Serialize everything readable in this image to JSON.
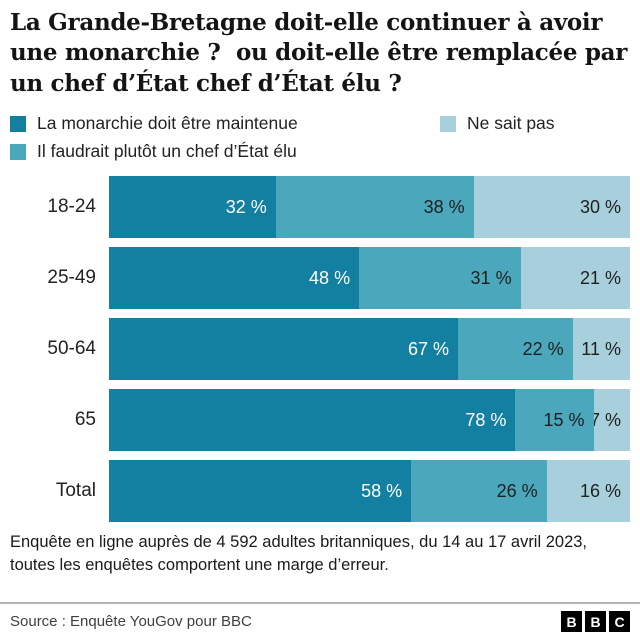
{
  "title": "La Grande-Bretagne doit-elle continuer à avoir une monarchie ?  ou doit-elle être remplacée par un chef d’État chef d’État élu ?",
  "chart_data": {
    "type": "bar",
    "stacked": true,
    "orientation": "horizontal",
    "unit": "percent",
    "value_suffix": " %",
    "xlim": [
      0,
      100
    ],
    "grid": false,
    "legend_position": "top",
    "categories": [
      "18-24",
      "25-49",
      "50-64",
      "65",
      "Total"
    ],
    "series": [
      {
        "name": "La monarchie doit être maintenue",
        "color": "#1380A1",
        "label_color": "#ffffff",
        "values": [
          32,
          48,
          67,
          78,
          58
        ]
      },
      {
        "name": "Il faudrait plutôt un chef d’État élu",
        "color": "#4AA7BC",
        "label_color": "#1f1f1f",
        "values": [
          38,
          31,
          22,
          15,
          26
        ]
      },
      {
        "name": "Ne sait pas",
        "color": "#A7D0DC",
        "label_color": "#1f1f1f",
        "values": [
          30,
          21,
          11,
          7,
          16
        ]
      }
    ]
  },
  "footnote": "Enquête en ligne auprès de 4 592 adultes britanniques, du 14 au 17 avril 2023, toutes les enquêtes comportent une marge d’erreur.",
  "source": "Source : Enquête YouGov pour BBC",
  "logo": {
    "letters": [
      "B",
      "B",
      "C"
    ]
  }
}
